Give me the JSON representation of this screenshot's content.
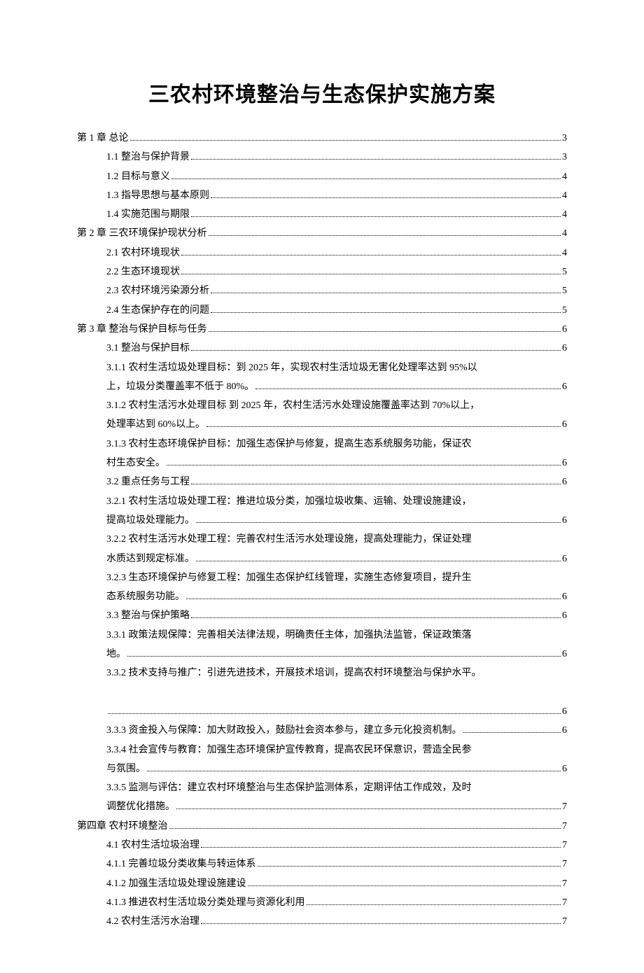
{
  "title": "三农村环境整治与生态保护实施方案",
  "toc": [
    {
      "indent": 0,
      "text": "第 1 章 总论",
      "page": "3"
    },
    {
      "indent": 1,
      "text": "1.1 整治与保护背景",
      "page": "3"
    },
    {
      "indent": 1,
      "text": "1.2 目标与意义",
      "page": "4"
    },
    {
      "indent": 1,
      "text": "1.3 指导思想与基本原则",
      "page": "4"
    },
    {
      "indent": 1,
      "text": "1.4 实施范围与期限",
      "page": "4"
    },
    {
      "indent": 0,
      "text": "第 2 章 三农环境保护现状分析",
      "page": "4"
    },
    {
      "indent": 1,
      "text": "2.1 农村环境现状",
      "page": "4"
    },
    {
      "indent": 1,
      "text": "2.2 生态环境现状",
      "page": "5"
    },
    {
      "indent": 1,
      "text": "2.3 农村环境污染源分析",
      "page": "5"
    },
    {
      "indent": 1,
      "text": "2.4 生态保护存在的问题",
      "page": "5"
    },
    {
      "indent": 0,
      "text": "第 3 章 整治与保护目标与任务",
      "page": "6"
    },
    {
      "indent": 1,
      "text": "3.1 整治与保护目标",
      "page": "6"
    },
    {
      "indent": 1,
      "multi": true,
      "pre": "3.1.1 农村生活垃圾处理目标：到 2025 年，实现农村生活垃圾无害化处理率达到 95%以",
      "last": "上，垃圾分类覆盖率不低于 80%。",
      "page": "6"
    },
    {
      "indent": 1,
      "multi": true,
      "pre": "3.1.2 农村生活污水处理目标 到 2025 年，农村生活污水处理设施覆盖率达到 70%以上，",
      "last": "处理率达到 60%以上。",
      "page": "6"
    },
    {
      "indent": 1,
      "multi": true,
      "pre": "3.1.3 农村生态环境保护目标：加强生态保护与修复，提高生态系统服务功能，保证农",
      "last": "村生态安全。",
      "page": "6"
    },
    {
      "indent": 1,
      "text": "3.2 重点任务与工程",
      "page": "6"
    },
    {
      "indent": 1,
      "multi": true,
      "pre": "3.2.1 农村生活垃圾处理工程：推进垃圾分类，加强垃圾收集、运输、处理设施建设，",
      "last": "提高垃圾处理能力。",
      "page": "6"
    },
    {
      "indent": 1,
      "multi": true,
      "pre": "3.2.2 农村生活污水处理工程：完善农村生活污水处理设施，提高处理能力，保证处理",
      "last": "水质达到规定标准。",
      "page": "6"
    },
    {
      "indent": 1,
      "multi": true,
      "pre": "3.2.3 生态环境保护与修复工程：加强生态保护红线管理，实施生态修复项目，提升生",
      "last": "态系统服务功能。",
      "page": "6"
    },
    {
      "indent": 1,
      "text": "3.3 整治与保护策略",
      "page": "6"
    },
    {
      "indent": 1,
      "multi": true,
      "pre": "3.3.1 政策法规保障：完善相关法律法规，明确责任主体，加强执法监管，保证政策落",
      "last": "地。",
      "page": "6"
    },
    {
      "indent": 1,
      "multi": true,
      "pre": "3.3.2 技术支持与推广：引进先进技术，开展技术培训，提高农村环境整治与保护水平。",
      "blank": true,
      "last": "",
      "page": "6"
    },
    {
      "indent": 1,
      "text": "3.3.3 资金投入与保障：加大财政投入，鼓励社会资本参与，建立多元化投资机制。",
      "page": "6",
      "tight": true
    },
    {
      "indent": 1,
      "multi": true,
      "pre": "3.3.4 社会宣传与教育：加强生态环境保护宣传教育，提高农民环保意识，营造全民参",
      "last": "与氛围。",
      "page": "6"
    },
    {
      "indent": 1,
      "multi": true,
      "pre": "3.3.5 监测与评估：建立农村环境整治与生态保护监测体系，定期评估工作成效，及时",
      "last": "调整优化措施。",
      "page": "7"
    },
    {
      "indent": 0,
      "text": "第四章 农村环境整治",
      "page": "7"
    },
    {
      "indent": 1,
      "text": "4.1 农村生活垃圾治理",
      "page": "7"
    },
    {
      "indent": 1,
      "text": "4.1.1 完善垃圾分类收集与转运体系",
      "page": "7"
    },
    {
      "indent": 1,
      "text": "4.1.2 加强生活垃圾处理设施建设",
      "page": "7"
    },
    {
      "indent": 1,
      "text": "4.1.3 推进农村生活垃圾分类处理与资源化利用",
      "page": "7"
    },
    {
      "indent": 1,
      "text": "4.2 农村生活污水治理",
      "page": "7"
    }
  ]
}
